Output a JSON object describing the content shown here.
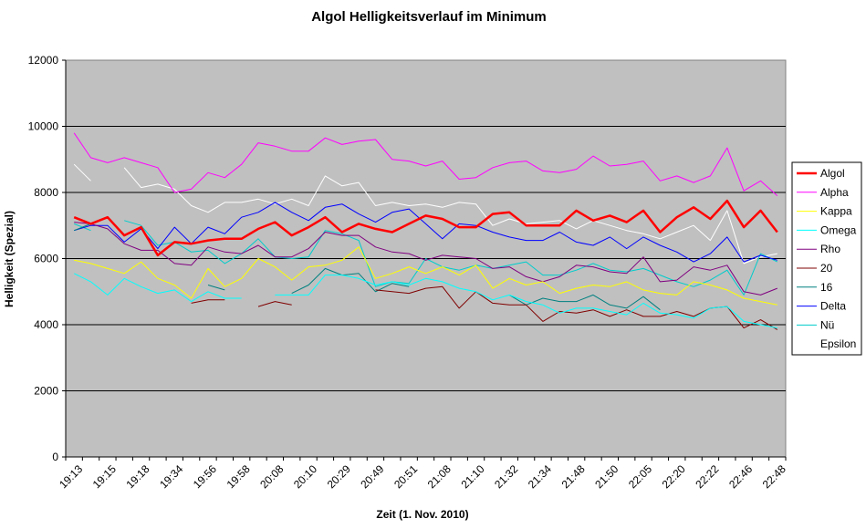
{
  "chart_data": {
    "type": "line",
    "title": "Algol Helligkeitsverlauf im Minimum",
    "xlabel": "Zeit (1. Nov. 2010)",
    "ylabel": "Helligkeit (Spezial)",
    "ylim": [
      0,
      12000
    ],
    "yticks": [
      "0",
      "2000",
      "4000",
      "6000",
      "8000",
      "10000",
      "12000"
    ],
    "x_tick_labels": [
      "19:13",
      "19:15",
      "19:18",
      "19:34",
      "19:56",
      "19:58",
      "20:08",
      "20:10",
      "20:29",
      "20:49",
      "20:51",
      "21:08",
      "21:10",
      "21:32",
      "21:34",
      "21:48",
      "21:50",
      "22:05",
      "22:20",
      "22:22",
      "22:46",
      "22:48"
    ],
    "n_points": 43,
    "grid": true,
    "legend_position": "right",
    "plot_background": "#c0c0c0",
    "series": [
      {
        "name": "Algol",
        "color": "#ff0000",
        "width": 2.5,
        "values": [
          7250,
          7050,
          7250,
          6700,
          6950,
          6100,
          6500,
          6450,
          6550,
          6600,
          6600,
          6900,
          7100,
          6700,
          6950,
          7250,
          6800,
          7050,
          6900,
          6800,
          7050,
          7300,
          7200,
          6950,
          6950,
          7350,
          7400,
          7000,
          7000,
          7000,
          7450,
          7150,
          7300,
          7100,
          7450,
          6800,
          7250,
          7550,
          7200,
          7750,
          6950,
          7450,
          6800
        ]
      },
      {
        "name": "Alpha",
        "color": "#ff00ff",
        "width": 1,
        "values": [
          9800,
          9050,
          8900,
          9050,
          8900,
          8750,
          8000,
          8100,
          8600,
          8450,
          8850,
          9500,
          9400,
          9250,
          9250,
          9650,
          9450,
          9550,
          9600,
          9000,
          8950,
          8800,
          8950,
          8400,
          8450,
          8750,
          8900,
          8950,
          8650,
          8600,
          8700,
          9100,
          8800,
          8850,
          8950,
          8350,
          8500,
          8300,
          8500,
          9350,
          8050,
          8350,
          7900
        ]
      },
      {
        "name": "Kappa",
        "color": "#ffff00",
        "width": 1,
        "values": [
          5950,
          5850,
          5700,
          5550,
          5900,
          5400,
          5200,
          4800,
          5700,
          5150,
          5400,
          6000,
          5750,
          5350,
          5750,
          5800,
          5950,
          6350,
          5400,
          5550,
          5750,
          5550,
          5750,
          5500,
          5800,
          5100,
          5400,
          5200,
          5300,
          4950,
          5100,
          5200,
          5150,
          5300,
          5050,
          4950,
          4900,
          5300,
          5200,
          5050,
          4800,
          4700,
          4600
        ]
      },
      {
        "name": "Omega",
        "color": "#00ffff",
        "width": 1,
        "values": [
          5550,
          5300,
          4900,
          5400,
          5150,
          4950,
          5050,
          4700,
          5000,
          4800,
          4800,
          null,
          4900,
          4900,
          4900,
          5500,
          5500,
          5400,
          5200,
          5300,
          5200,
          5400,
          5300,
          5100,
          5000,
          4750,
          4900,
          4700,
          4600,
          4350,
          4500,
          4500,
          4400,
          4300,
          4650,
          4350,
          4300,
          4200,
          4500,
          4550,
          4100,
          4000,
          3900
        ]
      },
      {
        "name": "Rho",
        "color": "#800080",
        "width": 1,
        "values": [
          7100,
          7050,
          6900,
          6450,
          6250,
          6250,
          5850,
          5800,
          6350,
          6200,
          6150,
          6400,
          6050,
          6050,
          6300,
          6800,
          6700,
          6700,
          6350,
          6200,
          6150,
          5950,
          6100,
          6050,
          6000,
          5700,
          5750,
          5450,
          5300,
          5450,
          5800,
          5750,
          5600,
          5550,
          6050,
          5300,
          5350,
          5750,
          5650,
          5800,
          5000,
          4900,
          5100
        ]
      },
      {
        "name": "20",
        "color": "#800000",
        "width": 1,
        "values": [
          null,
          null,
          null,
          null,
          null,
          null,
          null,
          4650,
          4750,
          4750,
          null,
          4550,
          4700,
          4600,
          null,
          null,
          null,
          null,
          5050,
          5000,
          4950,
          5100,
          5150,
          4500,
          5000,
          4650,
          4600,
          4600,
          4100,
          4400,
          4350,
          4450,
          4250,
          4450,
          4250,
          4250,
          4400,
          4250,
          4500,
          4550,
          3900,
          4150,
          3850
        ]
      },
      {
        "name": "16",
        "color": "#008080",
        "width": 1,
        "values": [
          6850,
          7050,
          null,
          null,
          null,
          null,
          null,
          null,
          5200,
          5050,
          null,
          null,
          null,
          4950,
          5200,
          5700,
          5500,
          5550,
          5000,
          5250,
          5150,
          null,
          null,
          null,
          null,
          null,
          4900,
          4600,
          4800,
          4700,
          4700,
          4900,
          4600,
          4500,
          4850,
          4450,
          null,
          null,
          null,
          null,
          null,
          null,
          null
        ]
      },
      {
        "name": "Delta",
        "color": "#0000ff",
        "width": 1,
        "values": [
          6850,
          7000,
          7000,
          6500,
          6900,
          6300,
          6950,
          6450,
          6950,
          6750,
          7250,
          7400,
          7700,
          7400,
          7150,
          7550,
          7650,
          7350,
          7100,
          7400,
          7500,
          7050,
          6600,
          7050,
          7000,
          6800,
          6650,
          6550,
          6550,
          6800,
          6500,
          6400,
          6650,
          6300,
          6650,
          6400,
          6200,
          5900,
          6150,
          6650,
          5900,
          6100,
          5950
        ]
      },
      {
        "name": "Nü",
        "color": "#00cccc",
        "width": 1,
        "values": [
          7050,
          6850,
          null,
          7150,
          7000,
          6400,
          6500,
          6200,
          6250,
          5850,
          6150,
          6600,
          6050,
          6000,
          6050,
          6850,
          6750,
          6550,
          5150,
          5300,
          5250,
          6000,
          5750,
          5650,
          5800,
          5700,
          5800,
          5900,
          5500,
          5500,
          5650,
          5850,
          5650,
          5600,
          5700,
          5500,
          5300,
          5150,
          5350,
          5650,
          4900,
          6150,
          5900
        ]
      },
      {
        "name": "Epsilon",
        "color": "#ffffff",
        "width": 1,
        "values": [
          8850,
          8350,
          null,
          8750,
          8150,
          8250,
          8100,
          7600,
          7400,
          7700,
          7700,
          7800,
          7650,
          7800,
          7600,
          8500,
          8200,
          8300,
          7600,
          7700,
          7600,
          7650,
          7550,
          7700,
          7650,
          7000,
          7200,
          7050,
          7100,
          7150,
          6900,
          7150,
          7000,
          6850,
          6750,
          6600,
          6800,
          7000,
          6550,
          7450,
          5850,
          6050,
          6150
        ]
      }
    ]
  }
}
